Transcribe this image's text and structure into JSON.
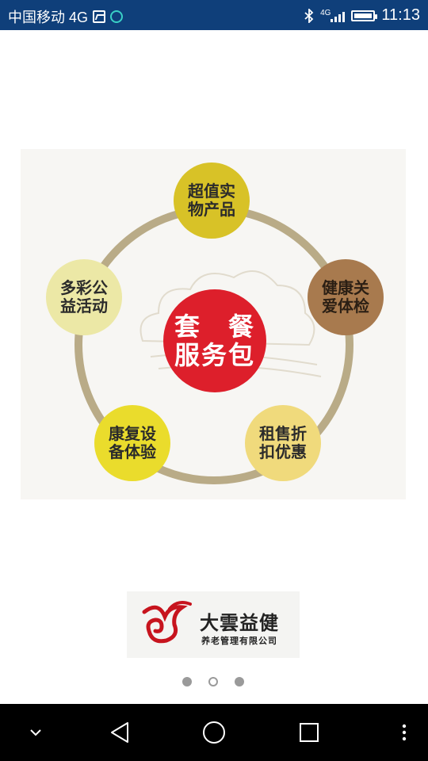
{
  "status_bar": {
    "carrier": "中国移动 4G",
    "network_label": "4G",
    "time": "11:13"
  },
  "diagram": {
    "center": [
      "套　餐",
      "服务包"
    ],
    "nodes": [
      {
        "line1": "超值实",
        "line2": "物产品",
        "color": "#d8c227"
      },
      {
        "line1": "健康关",
        "line2": "爱体检",
        "color": "#a87a4e"
      },
      {
        "line1": "租售折",
        "line2": "扣优惠",
        "color": "#f0da7c"
      },
      {
        "line1": "康复设",
        "line2": "备体验",
        "color": "#eadc2c"
      },
      {
        "line1": "多彩公",
        "line2": "益活动",
        "color": "#ece8a6"
      }
    ],
    "ring_color": "#b9ab87",
    "center_color": "#dd1f2b"
  },
  "logo": {
    "title": "大雲益健",
    "subtitle": "养老管理有限公司"
  },
  "pager": {
    "total": 3,
    "current": 2
  },
  "nav": {
    "icons": [
      "chevron-down-icon",
      "back-icon",
      "home-icon",
      "recents-icon",
      "more-icon"
    ]
  }
}
